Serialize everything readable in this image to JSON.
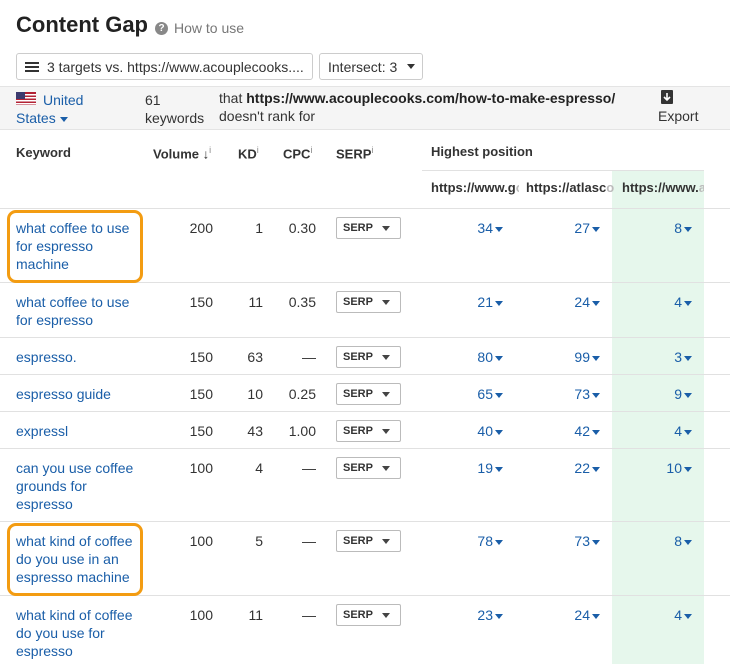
{
  "header": {
    "title": "Content Gap",
    "how_to_use": "How to use",
    "targets_label": "3 targets vs. https://www.acouplecooks....",
    "intersect_label": "Intersect: 3"
  },
  "infobar": {
    "country_line1": "United",
    "country_line2": "States",
    "keywords_count": "61",
    "keywords_label": "keywords",
    "that": "that ",
    "url": "https://www.acouplecooks.com/how-to-make-espresso/",
    "doesnt_rank": "doesn't rank for",
    "export_label": "Export"
  },
  "columns": {
    "keyword": "Keyword",
    "volume": "Volume",
    "kd": "KD",
    "cpc": "CPC",
    "serp": "SERP",
    "highest_position": "Highest position",
    "url1": "https://www.g",
    "url1_fade": "o",
    "url2": "https://atlasc",
    "url2_fade": "o",
    "url3": "https://www.",
    "url3_fade": "a",
    "info_mark": "i",
    "sort_arrow": "↓"
  },
  "serp_button_label": "SERP",
  "rows": [
    {
      "keyword": "what coffee to use for espresso machine",
      "volume": "200",
      "kd": "1",
      "cpc": "0.30",
      "pos1": "34",
      "pos2": "27",
      "pos3": "8",
      "highlighted": true
    },
    {
      "keyword": "what coffee to use for espresso",
      "volume": "150",
      "kd": "11",
      "cpc": "0.35",
      "pos1": "21",
      "pos2": "24",
      "pos3": "4",
      "highlighted": false
    },
    {
      "keyword": "espresso.",
      "volume": "150",
      "kd": "63",
      "cpc": "—",
      "pos1": "80",
      "pos2": "99",
      "pos3": "3",
      "highlighted": false
    },
    {
      "keyword": "espresso guide",
      "volume": "150",
      "kd": "10",
      "cpc": "0.25",
      "pos1": "65",
      "pos2": "73",
      "pos3": "9",
      "highlighted": false
    },
    {
      "keyword": "expressl",
      "volume": "150",
      "kd": "43",
      "cpc": "1.00",
      "pos1": "40",
      "pos2": "42",
      "pos3": "4",
      "highlighted": false
    },
    {
      "keyword": "can you use coffee grounds for espresso",
      "volume": "100",
      "kd": "4",
      "cpc": "—",
      "pos1": "19",
      "pos2": "22",
      "pos3": "10",
      "highlighted": false
    },
    {
      "keyword": "what kind of coffee do you use in an espresso machine",
      "volume": "100",
      "kd": "5",
      "cpc": "—",
      "pos1": "78",
      "pos2": "73",
      "pos3": "8",
      "highlighted": true
    },
    {
      "keyword": "what kind of coffee do you use for espresso",
      "volume": "100",
      "kd": "11",
      "cpc": "—",
      "pos1": "23",
      "pos2": "24",
      "pos3": "4",
      "highlighted": false
    }
  ],
  "colors": {
    "link": "#1a5ea8",
    "highlight_border": "#f39c12",
    "current_target_column": "#e6f7ec"
  }
}
